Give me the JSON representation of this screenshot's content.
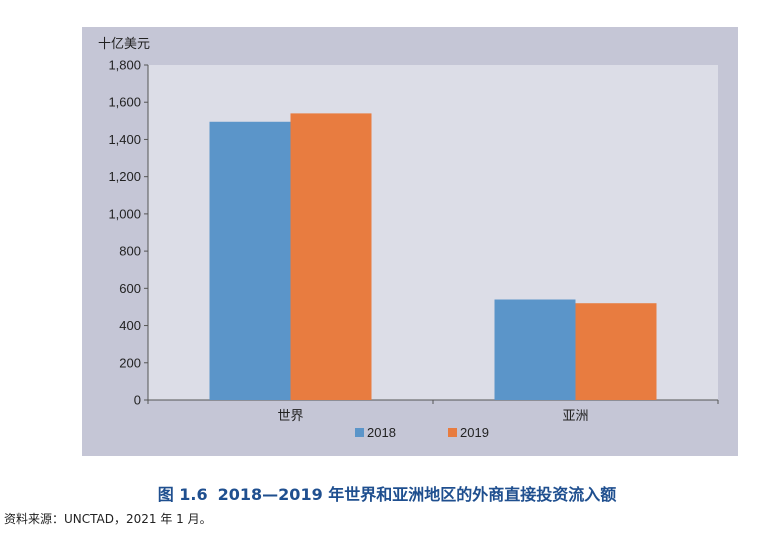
{
  "chart_data": {
    "type": "bar",
    "ylabel": "十亿美元",
    "ylim": [
      0,
      1800
    ],
    "yticks": [
      0,
      200,
      400,
      600,
      800,
      1000,
      1200,
      1400,
      1600,
      1800
    ],
    "ytick_labels": [
      "0",
      "200",
      "400",
      "600",
      "800",
      "1,000",
      "1,200",
      "1,400",
      "1,600",
      "1,800"
    ],
    "categories": [
      "世界",
      "亚洲"
    ],
    "series": [
      {
        "name": "2018",
        "values": [
          1495,
          540
        ],
        "color": "#5b95c9"
      },
      {
        "name": "2019",
        "values": [
          1540,
          520
        ],
        "color": "#e87c40"
      }
    ],
    "grid": false,
    "legend": "bottom",
    "plot_background": "#dcdde7",
    "panel_background": "#c5c6d6"
  },
  "caption": {
    "number": "图 1.6",
    "text": "2018—2019 年世界和亚洲地区的外商直接投资流入额"
  },
  "source": "资料来源：UNCTAD，2021 年 1 月。"
}
